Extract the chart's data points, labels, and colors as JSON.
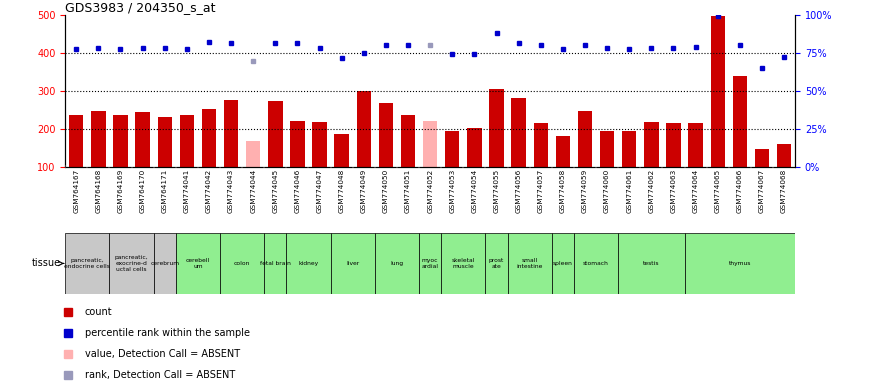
{
  "title": "GDS3983 / 204350_s_at",
  "samples": [
    "GSM764167",
    "GSM764168",
    "GSM764169",
    "GSM764170",
    "GSM764171",
    "GSM774041",
    "GSM774042",
    "GSM774043",
    "GSM774044",
    "GSM774045",
    "GSM774046",
    "GSM774047",
    "GSM774048",
    "GSM774049",
    "GSM774050",
    "GSM774051",
    "GSM774052",
    "GSM774053",
    "GSM774054",
    "GSM774055",
    "GSM774056",
    "GSM774057",
    "GSM774058",
    "GSM774059",
    "GSM774060",
    "GSM774061",
    "GSM774062",
    "GSM774063",
    "GSM774064",
    "GSM774065",
    "GSM774066",
    "GSM774067",
    "GSM774068"
  ],
  "count_values": [
    237,
    248,
    236,
    246,
    232,
    238,
    252,
    278,
    168,
    275,
    222,
    218,
    188,
    300,
    270,
    237,
    222,
    194,
    204,
    307,
    283,
    215,
    183,
    248,
    195,
    196,
    220,
    215,
    215,
    497,
    340,
    147,
    162
  ],
  "absent_count": [
    false,
    false,
    false,
    false,
    false,
    false,
    false,
    false,
    true,
    false,
    false,
    false,
    false,
    false,
    false,
    false,
    true,
    false,
    false,
    false,
    false,
    false,
    false,
    false,
    false,
    false,
    false,
    false,
    false,
    false,
    false,
    false,
    false
  ],
  "percentile_values": [
    412,
    414,
    411,
    415,
    413,
    410,
    430,
    428,
    380,
    427,
    426,
    415,
    387,
    400,
    423,
    422,
    421,
    397,
    398,
    453,
    427,
    421,
    411,
    423,
    413,
    411,
    413,
    414,
    416,
    497,
    421,
    360,
    390
  ],
  "absent_rank": [
    false,
    false,
    false,
    false,
    false,
    false,
    false,
    false,
    true,
    false,
    false,
    false,
    false,
    false,
    false,
    false,
    true,
    false,
    false,
    false,
    false,
    false,
    false,
    false,
    false,
    false,
    false,
    false,
    false,
    false,
    false,
    false,
    false
  ],
  "tissue_groups": [
    {
      "label": "pancreatic,\nendocrine cells",
      "start": 0,
      "end": 2,
      "color": "#c8c8c8"
    },
    {
      "label": "pancreatic,\nexocrine-d\nuctal cells",
      "start": 2,
      "end": 4,
      "color": "#c8c8c8"
    },
    {
      "label": "cerebrum",
      "start": 4,
      "end": 5,
      "color": "#c8c8c8"
    },
    {
      "label": "cerebell\num",
      "start": 5,
      "end": 7,
      "color": "#90ee90"
    },
    {
      "label": "colon",
      "start": 7,
      "end": 9,
      "color": "#90ee90"
    },
    {
      "label": "fetal brain",
      "start": 9,
      "end": 10,
      "color": "#90ee90"
    },
    {
      "label": "kidney",
      "start": 10,
      "end": 12,
      "color": "#90ee90"
    },
    {
      "label": "liver",
      "start": 12,
      "end": 14,
      "color": "#90ee90"
    },
    {
      "label": "lung",
      "start": 14,
      "end": 16,
      "color": "#90ee90"
    },
    {
      "label": "myoc\nardial",
      "start": 16,
      "end": 17,
      "color": "#90ee90"
    },
    {
      "label": "skeletal\nmuscle",
      "start": 17,
      "end": 19,
      "color": "#90ee90"
    },
    {
      "label": "prost\nate",
      "start": 19,
      "end": 20,
      "color": "#90ee90"
    },
    {
      "label": "small\nintestine",
      "start": 20,
      "end": 22,
      "color": "#90ee90"
    },
    {
      "label": "spleen",
      "start": 22,
      "end": 23,
      "color": "#90ee90"
    },
    {
      "label": "stomach",
      "start": 23,
      "end": 25,
      "color": "#90ee90"
    },
    {
      "label": "testis",
      "start": 25,
      "end": 28,
      "color": "#90ee90"
    },
    {
      "label": "thymus",
      "start": 28,
      "end": 33,
      "color": "#90ee90"
    }
  ],
  "bar_color_present": "#cc0000",
  "bar_color_absent": "#ffb0b0",
  "dot_color_present": "#0000cc",
  "dot_color_absent": "#9999bb",
  "ylim_left": [
    100,
    500
  ],
  "ylim_right": [
    0,
    100
  ],
  "yticks_left": [
    100,
    200,
    300,
    400,
    500
  ],
  "yticks_right": [
    0,
    25,
    50,
    75,
    100
  ],
  "hlines": [
    200,
    300,
    400
  ],
  "bg_color": "#ffffff",
  "plot_bg": "#ffffff",
  "xticklabel_bg": "#d0d0d0"
}
